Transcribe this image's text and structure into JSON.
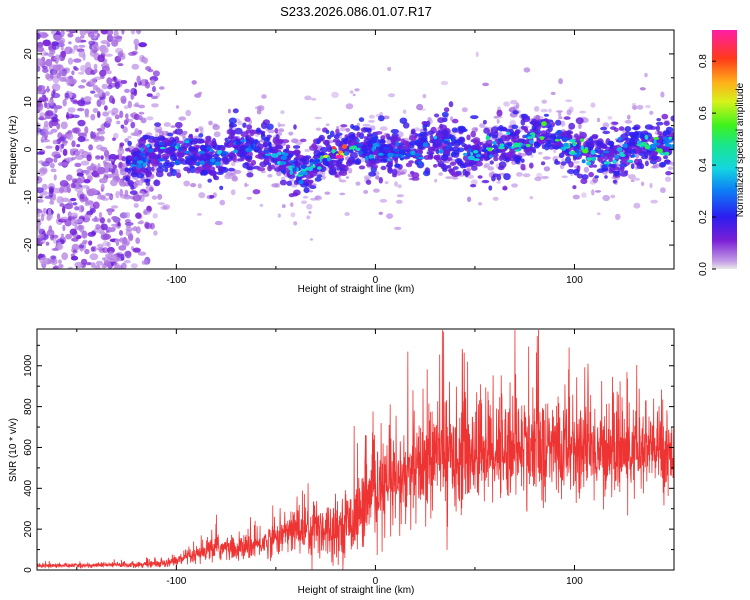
{
  "chart_data": [
    {
      "type": "heatmap",
      "title": "S233.2026.086.01.07.R17",
      "xlabel": "Height of straight line (km)",
      "ylabel": "Frequency (Hz)",
      "xlim": [
        -170,
        150
      ],
      "ylim": [
        -25,
        25
      ],
      "xticks": [
        -100,
        0,
        100
      ],
      "yticks": [
        -20,
        -10,
        0,
        10,
        20
      ],
      "colorbar": {
        "label": "Normalized spectral amplitude",
        "range": [
          0,
          0.92
        ],
        "ticks": [
          0.0,
          0.2,
          0.4,
          0.6,
          0.8
        ],
        "colormap": "rainbow (purple-blue-cyan-green-yellow-orange-red-magenta)"
      },
      "ridge": {
        "x": [
          -120,
          -110,
          -100,
          -90,
          -80,
          -70,
          -60,
          -50,
          -40,
          -35,
          -30,
          -25,
          -20,
          -15,
          -10,
          -5,
          0,
          10,
          20,
          30,
          40,
          50,
          60,
          70,
          80,
          90,
          100,
          110,
          120,
          130,
          140,
          148
        ],
        "y": [
          -3,
          -1,
          0,
          -1,
          -2,
          1,
          0,
          -1,
          -4,
          -5,
          -3,
          -2,
          -1,
          0,
          1,
          -1,
          0,
          -1,
          0,
          1,
          0,
          -1,
          0,
          1,
          3,
          2,
          0,
          -1,
          -1,
          0,
          1,
          1
        ],
        "peak_amplitude": [
          0.35,
          0.4,
          0.45,
          0.3,
          0.4,
          0.35,
          0.3,
          0.4,
          0.5,
          0.45,
          0.55,
          0.7,
          0.92,
          0.8,
          0.5,
          0.35,
          0.4,
          0.35,
          0.35,
          0.4,
          0.3,
          0.45,
          0.6,
          0.5,
          0.55,
          0.6,
          0.7,
          0.5,
          0.4,
          0.45,
          0.6,
          0.55
        ]
      }
    },
    {
      "type": "line",
      "xlabel": "Height of straight line (km)",
      "ylabel": "SNR (10 * v/v)",
      "xlim": [
        -170,
        150
      ],
      "ylim": [
        0,
        1180
      ],
      "xticks": [
        -100,
        0,
        100
      ],
      "yticks": [
        0,
        200,
        400,
        600,
        800,
        1000
      ],
      "series": [
        {
          "name": "SNR",
          "color": "#ee3333",
          "envelope_x": [
            -170,
            -150,
            -130,
            -110,
            -100,
            -90,
            -80,
            -70,
            -60,
            -50,
            -40,
            -30,
            -20,
            -10,
            0,
            10,
            20,
            30,
            40,
            50,
            60,
            70,
            80,
            90,
            100,
            110,
            120,
            130,
            140,
            150
          ],
          "envelope_mean": [
            22,
            22,
            25,
            30,
            45,
            70,
            110,
            100,
            120,
            160,
            200,
            210,
            200,
            260,
            380,
            420,
            470,
            560,
            570,
            580,
            600,
            610,
            580,
            600,
            590,
            590,
            580,
            570,
            590,
            580
          ],
          "envelope_spread": [
            10,
            10,
            12,
            15,
            25,
            40,
            60,
            50,
            60,
            80,
            110,
            150,
            120,
            160,
            200,
            220,
            230,
            250,
            250,
            240,
            250,
            240,
            230,
            230,
            220,
            210,
            200,
            200,
            200,
            190
          ]
        }
      ]
    }
  ],
  "colors": {
    "background": "#ffffff",
    "axis": "#000000",
    "snr_line": "#ee3333"
  }
}
